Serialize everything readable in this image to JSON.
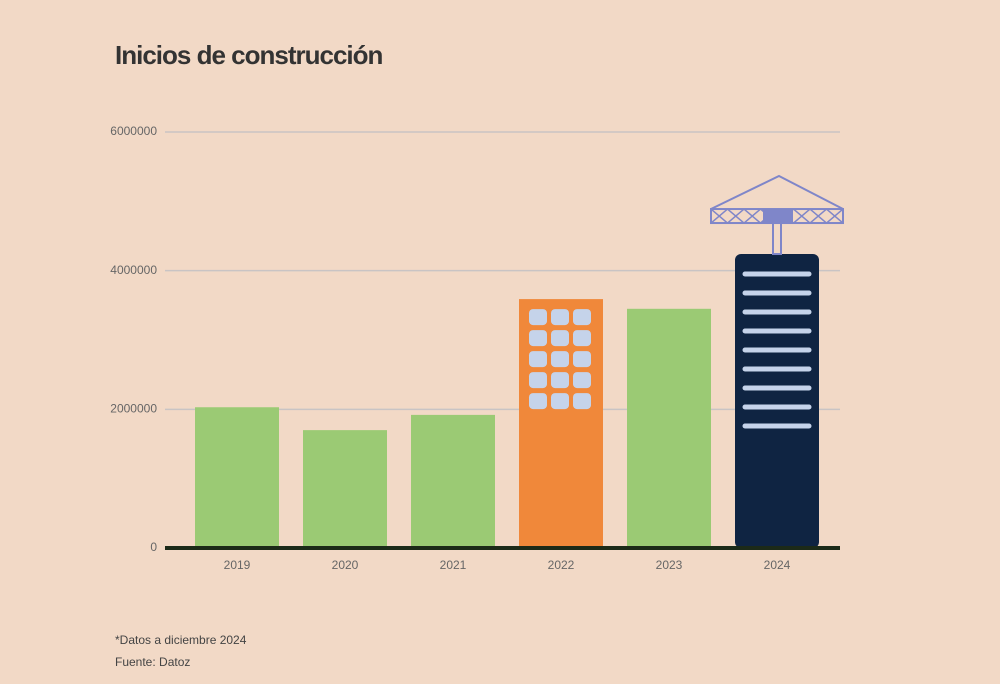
{
  "chart_data": {
    "type": "bar",
    "title": "Inicios de construcción",
    "categories": [
      "2019",
      "2020",
      "2021",
      "2022",
      "2023",
      "2024"
    ],
    "values": [
      2030000,
      1700000,
      1920000,
      3590000,
      3450000,
      4240000
    ],
    "colors": [
      "#9bca74",
      "#9bca74",
      "#9bca74",
      "#f0883a",
      "#9bca74",
      "#0f2442"
    ],
    "ylim": [
      0,
      6000000
    ],
    "yticks": [
      0,
      2000000,
      4000000,
      6000000
    ],
    "grid": true,
    "notes": [
      "*Datos a diciembre 2024",
      "Fuente: Datoz"
    ]
  }
}
